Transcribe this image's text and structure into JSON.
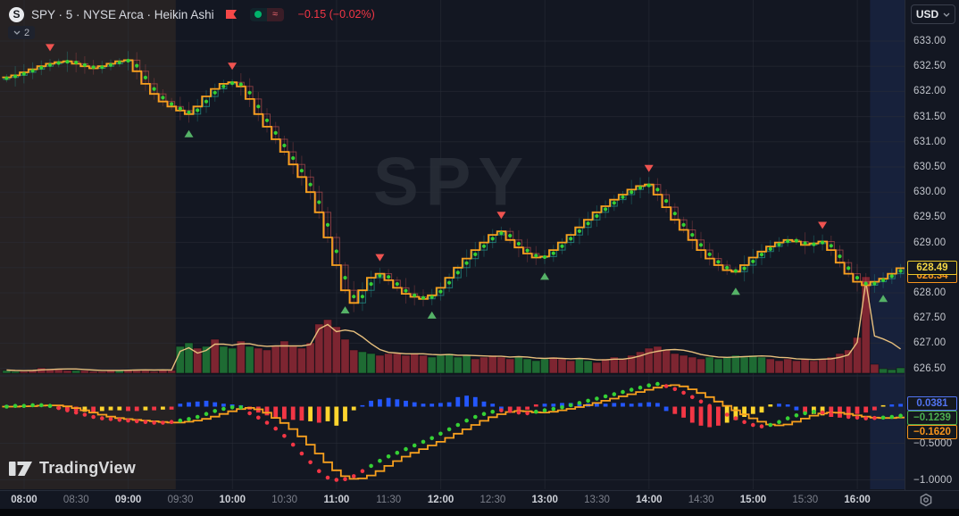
{
  "header": {
    "symbol_logo": "S",
    "symbol_title": "SPY · 5 · NYSE Arca · Heikin Ashi",
    "change_text": "−0.15 (−0.02%)",
    "legend_collapse_label": "2"
  },
  "currency_button": {
    "label": "USD"
  },
  "watermark": "SPY",
  "logo": {
    "brand": "TradingView"
  },
  "colors": {
    "bg": "#131722",
    "premarket_tint": "rgba(230,160,60,0.09)",
    "afterhours_tint": "rgba(59,110,245,0.12)",
    "grid": "rgba(42,46,57,0.55)",
    "candle_up": "rgba(38,166,154,0.65)",
    "candle_down": "rgba(222,90,90,0.55)",
    "dot": "#35d035",
    "trend_line": "#f8a01e",
    "vol_up": "#1e6b33",
    "vol_down": "#7d2531",
    "vol_ma": "#e7bf7d",
    "hist_blue": "#2457ff",
    "hist_red": "#f23645",
    "hist_yellow": "#ffd52e",
    "osc_dot_up": "#35d035",
    "osc_dot_down": "#f23645",
    "buy_marker": "#55b267",
    "sell_marker": "#ef5350"
  },
  "price_axis": {
    "ticks": [
      {
        "label": "633.00",
        "value": 633.0
      },
      {
        "label": "632.50",
        "value": 632.5
      },
      {
        "label": "632.00",
        "value": 632.0
      },
      {
        "label": "631.50",
        "value": 631.5
      },
      {
        "label": "631.00",
        "value": 631.0
      },
      {
        "label": "630.50",
        "value": 630.5
      },
      {
        "label": "630.00",
        "value": 630.0
      },
      {
        "label": "629.50",
        "value": 629.5
      },
      {
        "label": "629.00",
        "value": 629.0
      },
      {
        "label": "628.00",
        "value": 628.0
      },
      {
        "label": "627.50",
        "value": 627.5
      },
      {
        "label": "627.00",
        "value": 627.0
      },
      {
        "label": "626.50",
        "value": 626.5
      }
    ]
  },
  "lower_axis": {
    "ticks": [
      {
        "label": "−0.5000",
        "value": -0.5
      },
      {
        "label": "−1.0000",
        "value": -1.0
      }
    ]
  },
  "price_labels": [
    {
      "text": "628.34",
      "value": 628.34,
      "color": "#f7941d",
      "border": "#f7941d"
    },
    {
      "text": "628.49",
      "value": 628.49,
      "color": "#f2d545",
      "border": "#e8c62a"
    }
  ],
  "osc_labels": [
    {
      "text": "0.0381",
      "value": 0.0381,
      "color": "#5274f2"
    },
    {
      "text": "−0.1239",
      "value": -0.1239,
      "color": "#4caf50"
    },
    {
      "text": "−0.1620",
      "value": -0.162,
      "color": "#f7941d"
    }
  ],
  "time_axis": {
    "ticks": [
      {
        "label": "08:00",
        "major": true
      },
      {
        "label": "08:30",
        "major": false
      },
      {
        "label": "09:00",
        "major": true
      },
      {
        "label": "09:30",
        "major": false
      },
      {
        "label": "10:00",
        "major": true
      },
      {
        "label": "10:30",
        "major": false
      },
      {
        "label": "11:00",
        "major": true
      },
      {
        "label": "11:30",
        "major": false
      },
      {
        "label": "12:00",
        "major": true
      },
      {
        "label": "12:30",
        "major": false
      },
      {
        "label": "13:00",
        "major": true
      },
      {
        "label": "13:30",
        "major": false
      },
      {
        "label": "14:00",
        "major": true
      },
      {
        "label": "14:30",
        "major": false
      },
      {
        "label": "15:00",
        "major": true
      },
      {
        "label": "15:30",
        "major": false
      },
      {
        "label": "16:00",
        "major": true
      }
    ]
  },
  "chart_data": {
    "type": "candlestick",
    "symbol": "SPY",
    "interval_minutes": 5,
    "exchange": "NYSE Arca",
    "candle_style": "Heikin Ashi",
    "time_start": "07:50",
    "time_end": "16:25",
    "price_range": [
      626.5,
      633.0
    ],
    "oscillator_range": [
      -1.15,
      0.4
    ],
    "premarket_end_index": 20,
    "afterhours_start_index": 100,
    "close": [
      632.28,
      632.32,
      632.38,
      632.44,
      632.5,
      632.55,
      632.58,
      632.6,
      632.55,
      632.5,
      632.46,
      632.5,
      632.55,
      632.6,
      632.62,
      632.4,
      632.15,
      631.95,
      631.8,
      631.7,
      631.62,
      631.55,
      631.7,
      631.9,
      632.05,
      632.15,
      632.18,
      632.1,
      631.85,
      631.55,
      631.3,
      631.05,
      630.8,
      630.55,
      630.3,
      630.0,
      629.6,
      629.1,
      628.55,
      628.05,
      627.8,
      628.05,
      628.3,
      628.38,
      628.25,
      628.1,
      627.98,
      627.92,
      627.88,
      627.95,
      628.1,
      628.3,
      628.5,
      628.68,
      628.85,
      629.0,
      629.15,
      629.22,
      629.05,
      628.9,
      628.78,
      628.7,
      628.72,
      628.85,
      629.0,
      629.15,
      629.3,
      629.45,
      629.6,
      629.72,
      629.85,
      629.95,
      630.05,
      630.12,
      630.15,
      629.95,
      629.7,
      629.45,
      629.25,
      629.05,
      628.85,
      628.68,
      628.55,
      628.45,
      628.42,
      628.55,
      628.7,
      628.82,
      628.92,
      629.0,
      629.05,
      629.02,
      628.95,
      628.98,
      629.02,
      628.85,
      628.6,
      628.38,
      628.22,
      628.15,
      628.22,
      628.28,
      628.38,
      628.49
    ],
    "volume_rel": [
      3,
      2,
      2,
      3,
      6,
      5,
      4,
      3,
      3,
      3,
      2,
      2,
      3,
      3,
      4,
      3,
      3,
      2,
      4,
      3,
      30,
      34,
      28,
      30,
      38,
      30,
      28,
      36,
      30,
      28,
      26,
      30,
      36,
      30,
      28,
      34,
      55,
      60,
      52,
      38,
      26,
      24,
      22,
      20,
      22,
      22,
      20,
      22,
      20,
      18,
      20,
      22,
      18,
      20,
      16,
      18,
      20,
      18,
      16,
      18,
      16,
      14,
      16,
      18,
      16,
      14,
      16,
      14,
      12,
      16,
      18,
      16,
      20,
      24,
      28,
      30,
      26,
      22,
      20,
      18,
      16,
      18,
      16,
      18,
      20,
      18,
      20,
      18,
      16,
      14,
      16,
      14,
      16,
      14,
      16,
      18,
      22,
      26,
      40,
      108,
      10,
      5,
      4,
      6
    ],
    "volume_colors": "ggrrrrrrgrrrrgrrrrrrggrgrggrgrrrrrrrrrrrrggrrrrrrgggggrrrrrggggrrrggrrrrrrrrrrrrrgggggggrrrrrrrrrrrrrggg",
    "oscillator": {
      "dots": [
        0.0,
        0.01,
        0.01,
        0.02,
        0.02,
        0.01,
        -0.02,
        -0.05,
        -0.08,
        -0.11,
        -0.14,
        -0.16,
        -0.17,
        -0.18,
        -0.19,
        -0.2,
        -0.21,
        -0.22,
        -0.22,
        -0.21,
        -0.19,
        -0.17,
        -0.14,
        -0.1,
        -0.06,
        -0.03,
        -0.01,
        -0.01,
        -0.09,
        -0.15,
        -0.22,
        -0.3,
        -0.4,
        -0.52,
        -0.64,
        -0.76,
        -0.88,
        -0.97,
        -1.0,
        -0.99,
        -0.95,
        -0.88,
        -0.81,
        -0.74,
        -0.68,
        -0.63,
        -0.58,
        -0.53,
        -0.48,
        -0.43,
        -0.37,
        -0.31,
        -0.25,
        -0.19,
        -0.14,
        -0.1,
        -0.07,
        -0.05,
        -0.06,
        -0.08,
        -0.09,
        -0.07,
        -0.05,
        -0.03,
        -0.01,
        0.02,
        0.05,
        0.08,
        0.11,
        0.14,
        0.17,
        0.2,
        0.23,
        0.26,
        0.29,
        0.31,
        0.28,
        0.24,
        0.19,
        0.13,
        0.07,
        0.01,
        -0.05,
        -0.11,
        -0.16,
        -0.21,
        -0.25,
        -0.27,
        -0.25,
        -0.21,
        -0.16,
        -0.12,
        -0.09,
        -0.07,
        -0.08,
        -0.1,
        -0.12,
        -0.14,
        -0.15,
        -0.16,
        -0.155,
        -0.15,
        -0.14,
        -0.124
      ],
      "dot_colors": "ggggggrrrrrrrrrrrrrrggggggggrrrrrrrrrrrrrrgggggggggggggggrrrrgggggggggggggggrrrrrrrrrrrrggggggrrrrrrrggg",
      "hist": [
        0.02,
        0.02,
        0.015,
        0.01,
        0.02,
        0.015,
        -0.03,
        -0.05,
        -0.06,
        -0.07,
        -0.08,
        -0.06,
        -0.05,
        -0.05,
        -0.06,
        -0.06,
        -0.05,
        -0.05,
        -0.04,
        -0.04,
        0.04,
        0.06,
        0.07,
        0.08,
        0.06,
        0.04,
        0.03,
        0.02,
        -0.04,
        -0.08,
        -0.12,
        -0.15,
        -0.17,
        -0.18,
        -0.19,
        -0.2,
        -0.22,
        -0.2,
        -0.26,
        -0.2,
        -0.05,
        0.02,
        0.08,
        0.1,
        0.12,
        0.1,
        0.08,
        0.06,
        0.04,
        0.04,
        0.05,
        0.06,
        0.13,
        0.15,
        0.13,
        0.07,
        0.04,
        -0.04,
        -0.05,
        -0.05,
        -0.04,
        0.03,
        0.04,
        0.04,
        0.05,
        0.05,
        0.04,
        0.04,
        0.05,
        0.04,
        0.05,
        0.05,
        0.04,
        0.05,
        0.06,
        0.05,
        -0.06,
        -0.1,
        -0.15,
        -0.22,
        -0.26,
        -0.28,
        -0.26,
        -0.22,
        -0.18,
        -0.14,
        -0.1,
        -0.08,
        0.03,
        0.04,
        0.03,
        -0.05,
        -0.08,
        -0.1,
        -0.12,
        -0.14,
        -0.15,
        -0.13,
        -0.1,
        -0.08,
        -0.05,
        0.02,
        0.03,
        0.0381
      ],
      "hist_colors": "bbbbbbyrryryyyrryryrbbbbbbbbrrrrrrryryyyybbbbbbbbbbbbbbbbbrrrrbbbbbbbbbbbbbbbrrrrrryyyyyybbbryyrrrrrrybbb"
    },
    "markers": [
      {
        "index": 5,
        "type": "sell"
      },
      {
        "index": 21,
        "type": "buy"
      },
      {
        "index": 26,
        "type": "sell"
      },
      {
        "index": 39,
        "type": "buy"
      },
      {
        "index": 43,
        "type": "sell"
      },
      {
        "index": 49,
        "type": "buy"
      },
      {
        "index": 57,
        "type": "sell"
      },
      {
        "index": 62,
        "type": "buy"
      },
      {
        "index": 74,
        "type": "sell"
      },
      {
        "index": 84,
        "type": "buy"
      },
      {
        "index": 94,
        "type": "sell"
      },
      {
        "index": 101,
        "type": "buy"
      }
    ]
  }
}
